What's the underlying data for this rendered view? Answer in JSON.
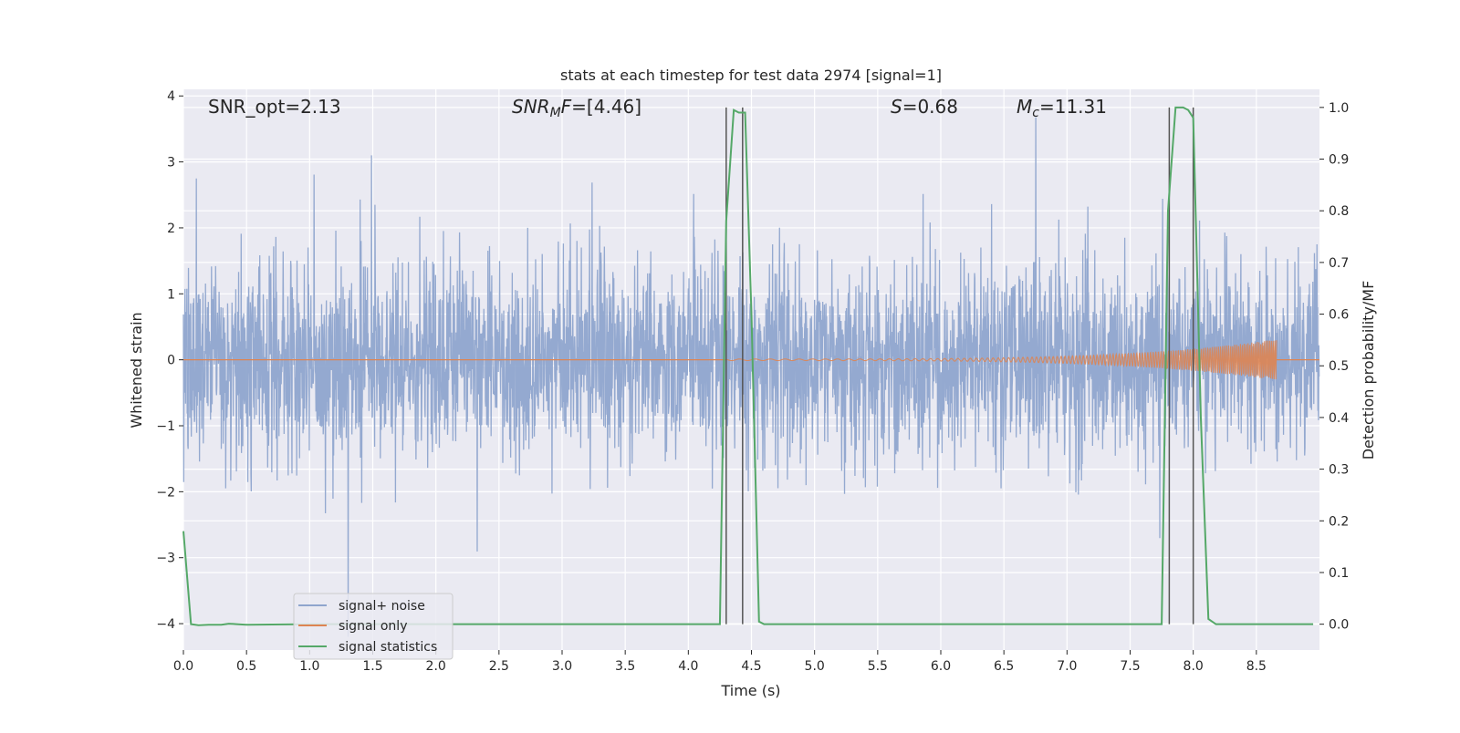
{
  "chart_data": {
    "type": "line",
    "title": "stats at each timestep for test data 2974 [signal=1]",
    "xlabel": "Time (s)",
    "ylabel": "Whitened strain",
    "ylabel_right": "Detection probability/MF",
    "xlim": [
      0,
      9
    ],
    "ylim": [
      -4.4,
      4.1
    ],
    "ylim_right": [
      -0.05,
      1.035
    ],
    "x_ticks": [
      "0.0",
      "0.5",
      "1.0",
      "1.5",
      "2.0",
      "2.5",
      "3.0",
      "3.5",
      "4.0",
      "4.5",
      "5.0",
      "5.5",
      "6.0",
      "6.5",
      "7.0",
      "7.5",
      "8.0",
      "8.5"
    ],
    "y_ticks": [
      "−4",
      "−3",
      "−2",
      "−1",
      "0",
      "1",
      "2",
      "3",
      "4"
    ],
    "y_ticks_right": [
      "0.0",
      "0.1",
      "0.2",
      "0.3",
      "0.4",
      "0.5",
      "0.6",
      "0.7",
      "0.8",
      "0.9",
      "1.0"
    ],
    "grid": true,
    "legend_position": "lower-left",
    "annotations": {
      "snr_opt": "SNR_opt=2.13",
      "snr_mf": "=[4.46]",
      "snr_mf_label": "SNR",
      "snr_mf_sub": "M",
      "snr_mf_tail": "F",
      "s_label": "S",
      "s_value": "=0.68",
      "mc_label": "M",
      "mc_sub": "c",
      "mc_value": "=11.31"
    },
    "series": [
      {
        "name": "signal+ noise",
        "color": "#8fa5cd",
        "kind": "noise",
        "envelope_std": 0.72
      },
      {
        "name": "signal only",
        "color": "#dd8452",
        "kind": "chirp",
        "start": 4.3,
        "end": 8.66,
        "max_amp": 0.3
      },
      {
        "name": "signal statistics",
        "color": "#55a868",
        "axis": "right",
        "x": [
          0.0,
          0.06,
          0.12,
          0.2,
          0.3,
          0.36,
          0.42,
          0.5,
          1.0,
          2.0,
          3.0,
          4.0,
          4.25,
          4.3,
          4.36,
          4.4,
          4.45,
          4.5,
          4.56,
          4.6,
          5.0,
          6.0,
          7.0,
          7.75,
          7.8,
          7.86,
          7.92,
          7.96,
          8.0,
          8.06,
          8.12,
          8.18,
          8.3,
          8.6,
          8.95
        ],
        "y": [
          0.18,
          0.0,
          -0.002,
          -0.001,
          -0.001,
          0.001,
          0.0,
          -0.001,
          0.0,
          0.0,
          0.0,
          0.0,
          0.0,
          0.78,
          0.995,
          0.99,
          0.99,
          0.6,
          0.005,
          0.0,
          0.0,
          0.0,
          0.0,
          0.0,
          0.8,
          1.0,
          1.0,
          0.995,
          0.98,
          0.4,
          0.01,
          0.0,
          0.0,
          0.0,
          0.0
        ]
      }
    ],
    "vlines": [
      4.3,
      4.43,
      7.81,
      8.0
    ],
    "vline_color": "#555555"
  }
}
